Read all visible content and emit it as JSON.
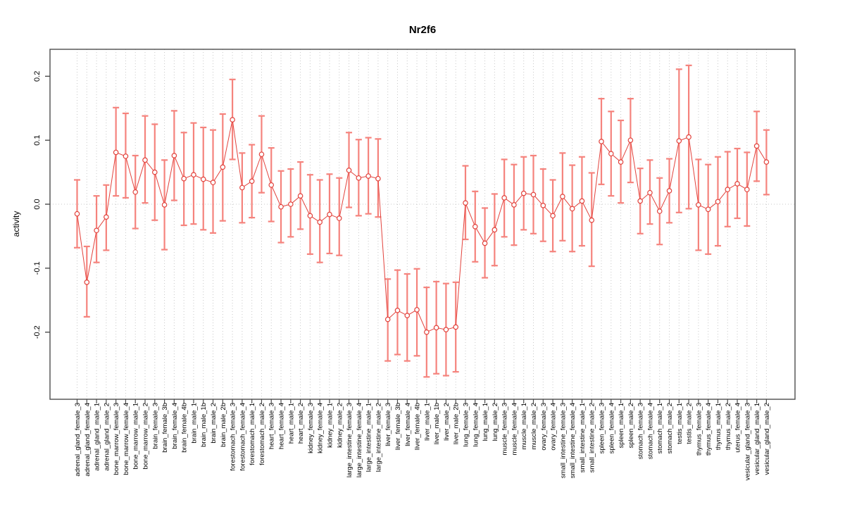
{
  "title": "Nr2f6",
  "ylabel": "activity",
  "chart_data": {
    "type": "errorbar",
    "title": "Nr2f6",
    "xlabel": "",
    "ylabel": "activity",
    "ylim": [
      -0.3,
      0.24
    ],
    "yticks": [
      -0.2,
      -0.1,
      0.0,
      0.1,
      0.2
    ],
    "ytick_labels": [
      "-0.2",
      "-0.1",
      "0.0",
      "0.1",
      "0.2"
    ],
    "grid": "vertical dotted gridline at every category; dotted horizontal line at 0",
    "legend_position": "none",
    "colors": {
      "error_bar": "#f5837d",
      "marker_line": "#e2423c",
      "grid": "#c8c8c8",
      "axis": "#4d4d4d"
    },
    "categories": [
      "adrenal_gland_female_3",
      "adrenal_gland_female_4",
      "adrenal_gland_male_1",
      "adrenal_gland_male_2",
      "bone_marrow_female_3",
      "bone_marrow_female_4",
      "bone_marrow_male_1",
      "bone_marrow_male_2",
      "brain_female_3",
      "brain_female_3b",
      "brain_female_4",
      "brain_female_4b",
      "brain_male_1",
      "brain_male_1b",
      "brain_male_2",
      "brain_male_2b",
      "forestomach_female_3",
      "forestomach_female_4",
      "forestomach_male_1",
      "forestomach_male_2",
      "heart_female_3",
      "heart_female_4",
      "heart_male_1",
      "heart_male_2",
      "kidney_female_3",
      "kidney_female_4",
      "kidney_male_1",
      "kidney_male_2",
      "large_intestine_female_3",
      "large_intestine_female_4",
      "large_intestine_male_1",
      "large_intestine_male_2",
      "liver_female_3",
      "liver_female_3b",
      "liver_female_4",
      "liver_female_4b",
      "liver_male_1",
      "liver_male_1b",
      "liver_male_2",
      "liver_male_2b",
      "lung_female_3",
      "lung_female_4",
      "lung_male_1",
      "lung_male_2",
      "muscle_female_3",
      "muscle_female_4",
      "muscle_male_1",
      "muscle_male_2",
      "ovary_female_3",
      "ovary_female_4",
      "small_intestine_female_3",
      "small_intestine_female_4",
      "small_intestine_male_1",
      "small_intestine_male_2",
      "spleen_female_3",
      "spleen_female_4",
      "spleen_male_1",
      "spleen_male_2",
      "stomach_female_3",
      "stomach_female_4",
      "stomach_male_1",
      "stomach_male_2",
      "testis_male_1",
      "testis_male_2",
      "thymus_female_3",
      "thymus_female_4",
      "thymus_male_1",
      "thymus_male_2",
      "uterus_female_4",
      "vesicular_gland_female_3",
      "vesicular_gland_male_1",
      "vesicular_gland_male_2"
    ],
    "series": [
      {
        "name": "activity",
        "values": [
          -0.015,
          -0.122,
          -0.041,
          -0.02,
          0.081,
          0.075,
          0.019,
          0.069,
          0.05,
          -0.001,
          0.076,
          0.04,
          0.046,
          0.039,
          0.034,
          0.058,
          0.132,
          0.026,
          0.036,
          0.078,
          0.03,
          -0.004,
          0.0,
          0.013,
          -0.018,
          -0.028,
          -0.016,
          -0.022,
          0.053,
          0.041,
          0.044,
          0.04,
          -0.18,
          -0.166,
          -0.174,
          -0.165,
          -0.2,
          -0.193,
          -0.196,
          -0.192,
          0.002,
          -0.035,
          -0.061,
          -0.04,
          0.01,
          -0.001,
          0.017,
          0.015,
          -0.002,
          -0.018,
          0.012,
          -0.007,
          0.005,
          -0.025,
          0.098,
          0.079,
          0.066,
          0.1,
          0.005,
          0.018,
          -0.011,
          0.021,
          0.099,
          0.105,
          -0.001,
          -0.008,
          0.004,
          0.023,
          0.032,
          0.023,
          0.091,
          0.066
        ],
        "lower": [
          -0.068,
          -0.176,
          -0.091,
          -0.072,
          0.013,
          0.01,
          -0.038,
          0.002,
          -0.025,
          -0.071,
          0.006,
          -0.033,
          -0.031,
          -0.04,
          -0.045,
          -0.026,
          0.07,
          -0.029,
          -0.021,
          0.018,
          -0.027,
          -0.06,
          -0.051,
          -0.039,
          -0.078,
          -0.091,
          -0.077,
          -0.08,
          -0.005,
          -0.018,
          -0.015,
          -0.02,
          -0.245,
          -0.235,
          -0.245,
          -0.237,
          -0.27,
          -0.265,
          -0.268,
          -0.262,
          -0.055,
          -0.09,
          -0.115,
          -0.096,
          -0.051,
          -0.064,
          -0.04,
          -0.046,
          -0.058,
          -0.074,
          -0.057,
          -0.074,
          -0.065,
          -0.097,
          0.031,
          0.013,
          0.002,
          0.034,
          -0.046,
          -0.031,
          -0.063,
          -0.029,
          -0.013,
          -0.007,
          -0.072,
          -0.078,
          -0.065,
          -0.035,
          -0.022,
          -0.034,
          0.036,
          0.015
        ],
        "upper": [
          0.038,
          -0.066,
          0.013,
          0.03,
          0.151,
          0.142,
          0.076,
          0.138,
          0.125,
          0.069,
          0.146,
          0.112,
          0.127,
          0.12,
          0.116,
          0.141,
          0.195,
          0.08,
          0.093,
          0.138,
          0.088,
          0.052,
          0.055,
          0.066,
          0.046,
          0.038,
          0.047,
          0.041,
          0.112,
          0.101,
          0.104,
          0.102,
          -0.117,
          -0.103,
          -0.109,
          -0.101,
          -0.13,
          -0.121,
          -0.124,
          -0.122,
          0.06,
          0.02,
          -0.006,
          0.016,
          0.07,
          0.062,
          0.074,
          0.076,
          0.055,
          0.038,
          0.08,
          0.061,
          0.074,
          0.049,
          0.165,
          0.145,
          0.131,
          0.165,
          0.056,
          0.069,
          0.041,
          0.071,
          0.211,
          0.217,
          0.07,
          0.062,
          0.074,
          0.082,
          0.087,
          0.081,
          0.145,
          0.116
        ]
      }
    ]
  }
}
